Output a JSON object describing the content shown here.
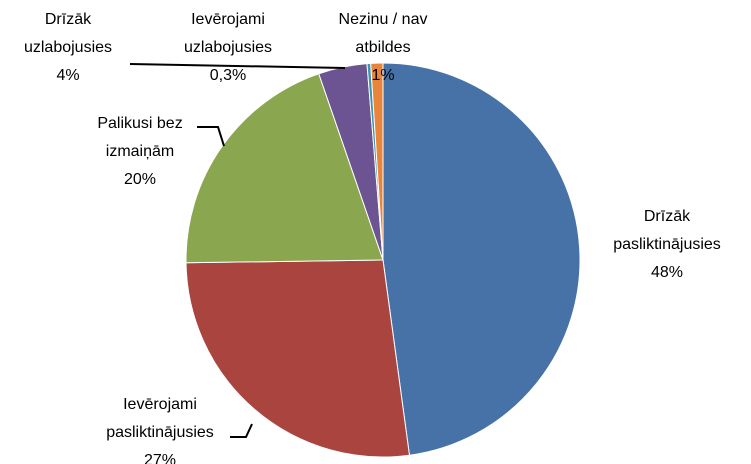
{
  "chart_data": {
    "type": "pie",
    "categories": [
      "Drīzāk pasliktinājusies",
      "Ievērojami pasliktinājusies",
      "Palikusi bez izmaiņām",
      "Drīzāk uzlabojusies",
      "Ievērojami uzlabojusies",
      "Nezinu / nav atbildes"
    ],
    "values": [
      48,
      27,
      20,
      4,
      0.3,
      1
    ],
    "value_labels": [
      "48%",
      "27%",
      "20%",
      "4%",
      "0,3%",
      "1%"
    ],
    "colors": [
      "#4672a8",
      "#a9443f",
      "#8aa64f",
      "#6c5391",
      "#3e95ae",
      "#e8853a"
    ]
  }
}
